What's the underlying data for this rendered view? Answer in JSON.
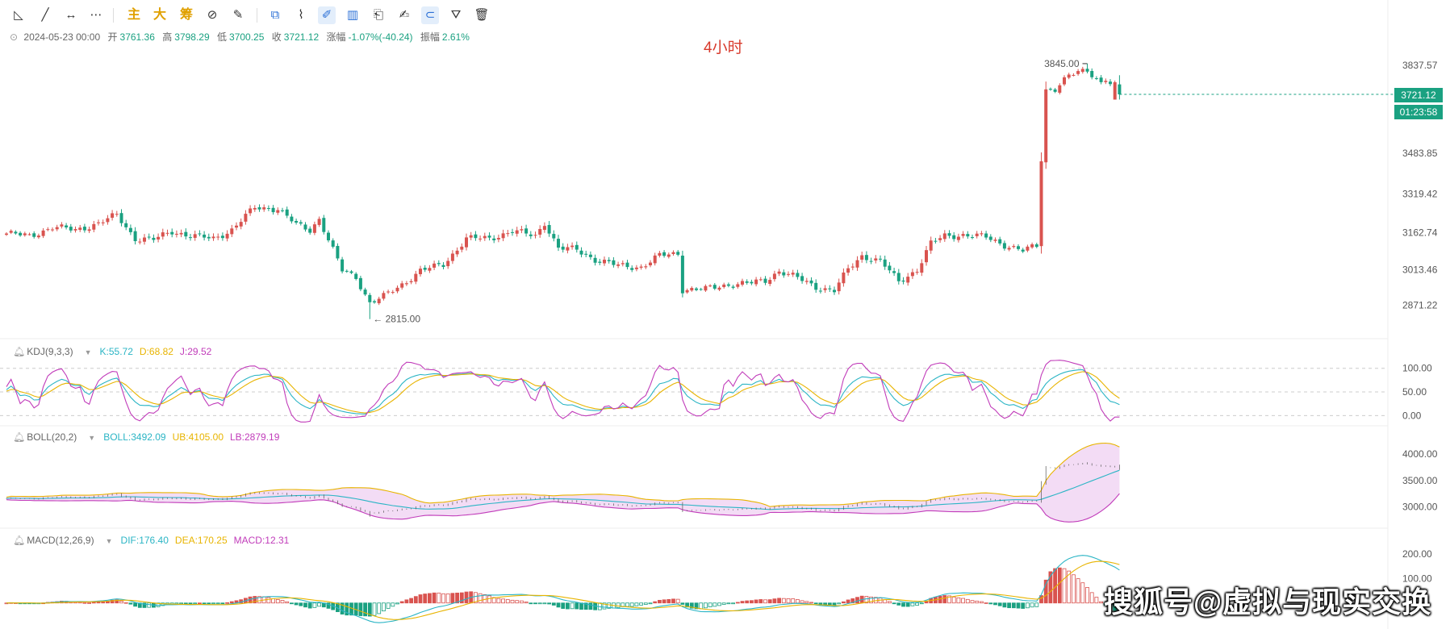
{
  "toolbar": {
    "tools": [
      {
        "name": "line-tool-icon",
        "glyph": "◺"
      },
      {
        "name": "ray-tool-icon",
        "glyph": "╱"
      },
      {
        "name": "horizontal-line-icon",
        "glyph": "↔"
      },
      {
        "name": "more-tools-icon",
        "glyph": "⋯"
      },
      {
        "name": "main-button",
        "glyph": "主",
        "cn": true
      },
      {
        "name": "big-button",
        "glyph": "大",
        "cn": true
      },
      {
        "name": "chip-button",
        "glyph": "筹",
        "cn": true
      },
      {
        "name": "indicator-edit-icon",
        "glyph": "⊘"
      },
      {
        "name": "brush-icon",
        "glyph": "✎"
      },
      {
        "name": "copy-icon",
        "glyph": "⧉",
        "blue": true
      },
      {
        "name": "ruler-icon",
        "glyph": "⌇"
      },
      {
        "name": "draw-icon",
        "glyph": "✐",
        "active": true
      },
      {
        "name": "candle-icon",
        "glyph": "▥",
        "blue": true
      },
      {
        "name": "clipboard-icon",
        "glyph": "⎗"
      },
      {
        "name": "note-icon",
        "glyph": "✍"
      },
      {
        "name": "magnet-icon",
        "glyph": "⊂",
        "active": true
      },
      {
        "name": "filter-icon",
        "glyph": "⛛"
      },
      {
        "name": "delete-icon",
        "glyph": "🗑"
      }
    ]
  },
  "info": {
    "timestamp": "2024-05-23 00:00",
    "open_label": "开",
    "open": "3761.36",
    "high_label": "高",
    "high": "3798.29",
    "low_label": "低",
    "low": "3700.25",
    "close_label": "收",
    "close": "3721.12",
    "change_label": "涨幅",
    "change": "-1.07%(-40.24)",
    "amp_label": "振幅",
    "amp": "2.61%"
  },
  "period": "4小时",
  "price_tags": {
    "last": "3721.12",
    "countdown": "01:23:58"
  },
  "kdj": {
    "name": "KDJ(9,3,3)",
    "k": "K:55.72",
    "d": "D:68.82",
    "j": "J:29.52",
    "k_color": "#2bb5c5",
    "d_color": "#e8b400",
    "j_color": "#c13cba"
  },
  "boll": {
    "name": "BOLL(20,2)",
    "boll": "BOLL:3492.09",
    "ub": "UB:4105.00",
    "lb": "LB:2879.19",
    "boll_color": "#2bb5c5",
    "ub_color": "#e8b400",
    "lb_color": "#c13cba"
  },
  "macd": {
    "name": "MACD(12,26,9)",
    "dif": "DIF:176.40",
    "dea": "DEA:170.25",
    "macd": "MACD:12.31",
    "dif_color": "#2bb5c5",
    "dea_color": "#e8b400",
    "macd_color": "#c13cba"
  },
  "watermark": "搜狐号@虚拟与现实交换",
  "colors": {
    "up": "#d9534f",
    "down": "#1aa181",
    "accent": "#2a6fd6"
  },
  "chart_data": {
    "type": "candlestick",
    "panes": {
      "price": {
        "ticks": [
          "2871.22",
          "3013.46",
          "3162.74",
          "3319.42",
          "3483.85",
          "3837.57"
        ],
        "tick_values": [
          2871.22,
          3013.46,
          3162.74,
          3319.42,
          3483.85,
          3837.57
        ],
        "ylim": [
          2775,
          3900
        ],
        "high_marker": "3845.00",
        "low_marker": "2815.00"
      },
      "kdj": {
        "ticks": [
          "100.00",
          "50.00",
          "0.00"
        ],
        "tick_values": [
          100,
          50,
          0
        ],
        "ylim": [
          -25,
          120
        ]
      },
      "boll": {
        "ticks": [
          "4000.00",
          "3500.00",
          "3000.00"
        ],
        "tick_values": [
          4000,
          3500,
          3000
        ],
        "ylim": [
          2520,
          4200
        ]
      },
      "macd": {
        "ticks": [
          "200.00",
          "100.00"
        ],
        "tick_values": [
          200,
          100
        ],
        "ylim": [
          -80,
          230
        ]
      }
    },
    "anchors": [
      [
        0,
        3160
      ],
      [
        5,
        3150
      ],
      [
        10,
        3185
      ],
      [
        15,
        3175
      ],
      [
        20,
        3200
      ],
      [
        24,
        3235
      ],
      [
        28,
        3140
      ],
      [
        32,
        3135
      ],
      [
        36,
        3170
      ],
      [
        40,
        3150
      ],
      [
        45,
        3140
      ],
      [
        49,
        3175
      ],
      [
        54,
        3265
      ],
      [
        59,
        3260
      ],
      [
        63,
        3195
      ],
      [
        66,
        3175
      ],
      [
        68,
        3220
      ],
      [
        70,
        3135
      ],
      [
        73,
        3010
      ],
      [
        76,
        2985
      ],
      [
        79,
        2880
      ],
      [
        82,
        2905
      ],
      [
        86,
        2955
      ],
      [
        90,
        3010
      ],
      [
        95,
        3035
      ],
      [
        100,
        3140
      ],
      [
        105,
        3140
      ],
      [
        110,
        3170
      ],
      [
        115,
        3150
      ],
      [
        117,
        3205
      ],
      [
        120,
        3100
      ],
      [
        124,
        3095
      ],
      [
        128,
        3055
      ],
      [
        133,
        3030
      ],
      [
        138,
        3025
      ],
      [
        142,
        3070
      ],
      [
        146,
        3080
      ],
      [
        147,
        2935
      ],
      [
        152,
        2935
      ],
      [
        157,
        2955
      ],
      [
        162,
        2960
      ],
      [
        165,
        2970
      ],
      [
        168,
        3010
      ],
      [
        172,
        2980
      ],
      [
        176,
        2945
      ],
      [
        180,
        2930
      ],
      [
        183,
        3015
      ],
      [
        186,
        3070
      ],
      [
        190,
        3050
      ],
      [
        194,
        2965
      ],
      [
        198,
        3015
      ],
      [
        201,
        3120
      ],
      [
        204,
        3150
      ],
      [
        208,
        3155
      ],
      [
        213,
        3145
      ],
      [
        217,
        3115
      ],
      [
        221,
        3090
      ],
      [
        224,
        3110
      ],
      [
        225,
        3460
      ],
      [
        226,
        3740
      ],
      [
        228,
        3745
      ],
      [
        231,
        3795
      ],
      [
        235,
        3820
      ],
      [
        238,
        3770
      ],
      [
        239,
        3785
      ],
      [
        242,
        3720
      ]
    ],
    "last_index": 242
  }
}
